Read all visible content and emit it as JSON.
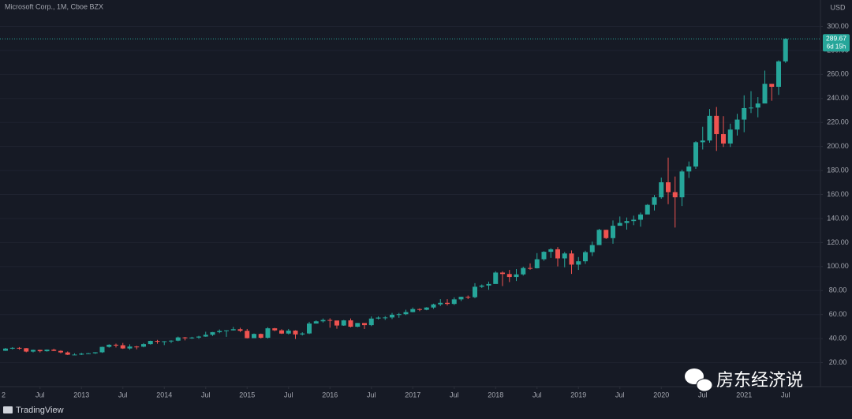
{
  "chart_data": {
    "type": "candlestick",
    "title": "Microsoft Corp., 1M, Cboe BZX",
    "currency": "USD",
    "brand": "TradingView",
    "watermark": "房东经济说",
    "up_color": "#26a69a",
    "down_color": "#ef5350",
    "grid": true,
    "last_price": 289.67,
    "countdown": "6d 15h",
    "ylim": [
      0,
      322
    ],
    "yticks": [
      {
        "value": 20,
        "label": "20.00"
      },
      {
        "value": 40,
        "label": "40.00"
      },
      {
        "value": 60,
        "label": "60.00"
      },
      {
        "value": 80,
        "label": "80.00"
      },
      {
        "value": 100,
        "label": "100.00"
      },
      {
        "value": 120,
        "label": "120.00"
      },
      {
        "value": 140,
        "label": "140.00"
      },
      {
        "value": 160,
        "label": "160.00"
      },
      {
        "value": 180,
        "label": "180.00"
      },
      {
        "value": 200,
        "label": "200.00"
      },
      {
        "value": 220,
        "label": "220.00"
      },
      {
        "value": 240,
        "label": "240.00"
      },
      {
        "value": 260,
        "label": "260.00"
      },
      {
        "value": 280,
        "label": "280.00"
      },
      {
        "value": 300,
        "label": "300.00"
      }
    ],
    "xticks": [
      {
        "value": -1,
        "label": "2"
      },
      {
        "value": 5,
        "label": "Jul"
      },
      {
        "value": 11,
        "label": "2013"
      },
      {
        "value": 17,
        "label": "Jul"
      },
      {
        "value": 23,
        "label": "2014"
      },
      {
        "value": 29,
        "label": "Jul"
      },
      {
        "value": 35,
        "label": "2015"
      },
      {
        "value": 41,
        "label": "Jul"
      },
      {
        "value": 47,
        "label": "2016"
      },
      {
        "value": 53,
        "label": "Jul"
      },
      {
        "value": 59,
        "label": "2017"
      },
      {
        "value": 65,
        "label": "Jul"
      },
      {
        "value": 71,
        "label": "2018"
      },
      {
        "value": 77,
        "label": "Jul"
      },
      {
        "value": 83,
        "label": "2019"
      },
      {
        "value": 89,
        "label": "Jul"
      },
      {
        "value": 95,
        "label": "2020"
      },
      {
        "value": 101,
        "label": "Jul"
      },
      {
        "value": 107,
        "label": "2021"
      },
      {
        "value": 113,
        "label": "Jul"
      }
    ],
    "open": [
      29.9,
      31.7,
      32.3,
      32.0,
      29.2,
      30.6,
      29.5,
      30.8,
      29.8,
      28.5,
      26.6,
      26.7,
      27.5,
      27.8,
      28.6,
      33.1,
      34.9,
      34.5,
      31.8,
      33.4,
      33.3,
      35.4,
      38.1,
      37.4,
      37.8,
      38.3,
      41.0,
      40.4,
      40.9,
      41.7,
      43.2,
      45.4,
      46.4,
      46.9,
      47.8,
      46.5,
      40.4,
      43.9,
      40.7,
      48.6,
      46.9,
      44.2,
      46.7,
      43.5,
      44.3,
      52.6,
      54.4,
      55.5,
      55.1,
      50.9,
      55.2,
      49.9,
      53.0,
      51.2,
      56.7,
      57.5,
      57.6,
      59.9,
      60.3,
      62.1,
      64.6,
      64.0,
      65.9,
      68.5,
      69.8,
      68.9,
      72.7,
      74.8,
      74.5,
      83.2,
      84.2,
      85.5,
      95.0,
      93.8,
      91.3,
      93.5,
      98.8,
      98.6,
      106.1,
      112.3,
      114.4,
      106.8,
      110.9,
      101.6,
      104.4,
      112.0,
      117.9,
      130.6,
      123.7,
      134.0,
      136.3,
      137.9,
      139.0,
      143.4,
      151.4,
      157.7,
      170.2,
      162.0,
      157.7,
      179.2,
      183.3,
      203.5,
      205.0,
      225.5,
      210.3,
      202.5,
      214.1,
      222.4,
      232.0,
      232.4,
      235.8,
      252.2,
      249.7,
      270.9
    ],
    "high": [
      32.2,
      32.9,
      32.9,
      32.1,
      30.9,
      30.8,
      31.0,
      31.6,
      30.3,
      29.3,
      27.8,
      28.2,
      28.2,
      28.7,
      33.3,
      35.3,
      35.8,
      36.4,
      35.2,
      34.0,
      36.3,
      38.3,
      38.9,
      37.9,
      38.6,
      41.7,
      41.4,
      41.5,
      42.3,
      45.7,
      45.5,
      47.6,
      47.0,
      49.8,
      49.0,
      48.0,
      44.3,
      44.2,
      49.5,
      48.9,
      47.8,
      48.0,
      47.0,
      45.3,
      54.0,
      55.2,
      56.8,
      56.9,
      53.0,
      55.6,
      56.8,
      53.0,
      52.9,
      58.5,
      58.6,
      58.7,
      61.4,
      61.4,
      64.1,
      65.9,
      65.2,
      66.2,
      69.1,
      72.9,
      72.9,
      74.4,
      74.9,
      75.9,
      86.2,
      85.1,
      87.5,
      96.1,
      96.0,
      97.2,
      97.9,
      99.9,
      102.7,
      111.2,
      112.8,
      115.3,
      116.2,
      112.2,
      113.4,
      107.9,
      113.2,
      120.8,
      131.4,
      130.6,
      138.4,
      141.7,
      140.9,
      142.4,
      145.0,
      152.0,
      159.6,
      174.1,
      190.7,
      175.0,
      180.6,
      187.5,
      204.4,
      216.4,
      231.2,
      232.9,
      225.2,
      219.0,
      227.2,
      242.6,
      246.1,
      241.1,
      263.2,
      251.7,
      271.7,
      290.2
    ],
    "low": [
      29.7,
      31.0,
      30.8,
      28.6,
      28.5,
      28.5,
      29.2,
      29.6,
      27.8,
      26.3,
      26.3,
      26.3,
      27.3,
      27.3,
      28.1,
      32.5,
      32.6,
      31.4,
      30.8,
      31.1,
      32.8,
      35.0,
      35.7,
      34.6,
      36.3,
      37.8,
      38.5,
      39.8,
      39.8,
      41.5,
      42.2,
      44.5,
      41.5,
      46.8,
      45.5,
      40.2,
      40.6,
      40.1,
      40.1,
      46.2,
      43.9,
      43.5,
      39.7,
      42.6,
      43.8,
      52.5,
      53.4,
      49.1,
      48.2,
      50.6,
      49.4,
      49.5,
      48.0,
      50.4,
      56.0,
      55.6,
      56.3,
      57.3,
      59.6,
      61.9,
      62.8,
      63.6,
      64.8,
      67.1,
      67.6,
      68.0,
      71.3,
      72.9,
      73.7,
      82.2,
      80.7,
      86.0,
      83.8,
      87.1,
      88.0,
      92.5,
      97.3,
      98.4,
      104.8,
      107.2,
      100.1,
      99.4,
      93.9,
      97.2,
      102.3,
      108.8,
      118.1,
      123.0,
      119.0,
      134.7,
      130.8,
      134.5,
      133.2,
      144.4,
      146.7,
      156.5,
      152.0,
      132.5,
      150.4,
      173.8,
      181.4,
      197.5,
      203.1,
      196.3,
      199.6,
      199.6,
      209.1,
      211.9,
      227.9,
      224.3,
      238.1,
      238.1,
      243.0,
      269.6
    ],
    "close": [
      31.7,
      32.3,
      32.0,
      29.2,
      30.6,
      29.5,
      30.8,
      29.8,
      28.5,
      26.6,
      26.7,
      27.5,
      27.8,
      28.6,
      33.1,
      34.9,
      34.5,
      31.8,
      33.4,
      33.3,
      35.4,
      38.1,
      37.4,
      37.8,
      38.3,
      41.0,
      40.4,
      40.9,
      41.7,
      43.2,
      45.4,
      46.4,
      46.9,
      47.8,
      46.5,
      40.4,
      43.9,
      40.7,
      48.6,
      46.9,
      44.2,
      46.7,
      43.5,
      44.3,
      52.6,
      54.4,
      55.5,
      55.1,
      50.9,
      55.2,
      49.9,
      53.0,
      51.2,
      56.7,
      57.5,
      57.6,
      59.9,
      60.3,
      62.1,
      64.6,
      64.0,
      65.9,
      68.5,
      69.8,
      68.9,
      72.7,
      74.8,
      74.5,
      83.2,
      84.2,
      85.5,
      95.0,
      93.8,
      91.3,
      93.5,
      98.8,
      98.6,
      106.1,
      112.3,
      114.4,
      106.8,
      110.9,
      101.6,
      104.4,
      112.0,
      117.9,
      130.6,
      123.7,
      134.0,
      136.3,
      137.9,
      139.0,
      143.4,
      151.4,
      157.7,
      170.2,
      162.0,
      157.7,
      179.2,
      183.3,
      203.5,
      205.0,
      225.5,
      210.3,
      202.5,
      214.1,
      222.4,
      232.0,
      232.4,
      235.8,
      252.2,
      249.7,
      270.9,
      289.67
    ]
  }
}
